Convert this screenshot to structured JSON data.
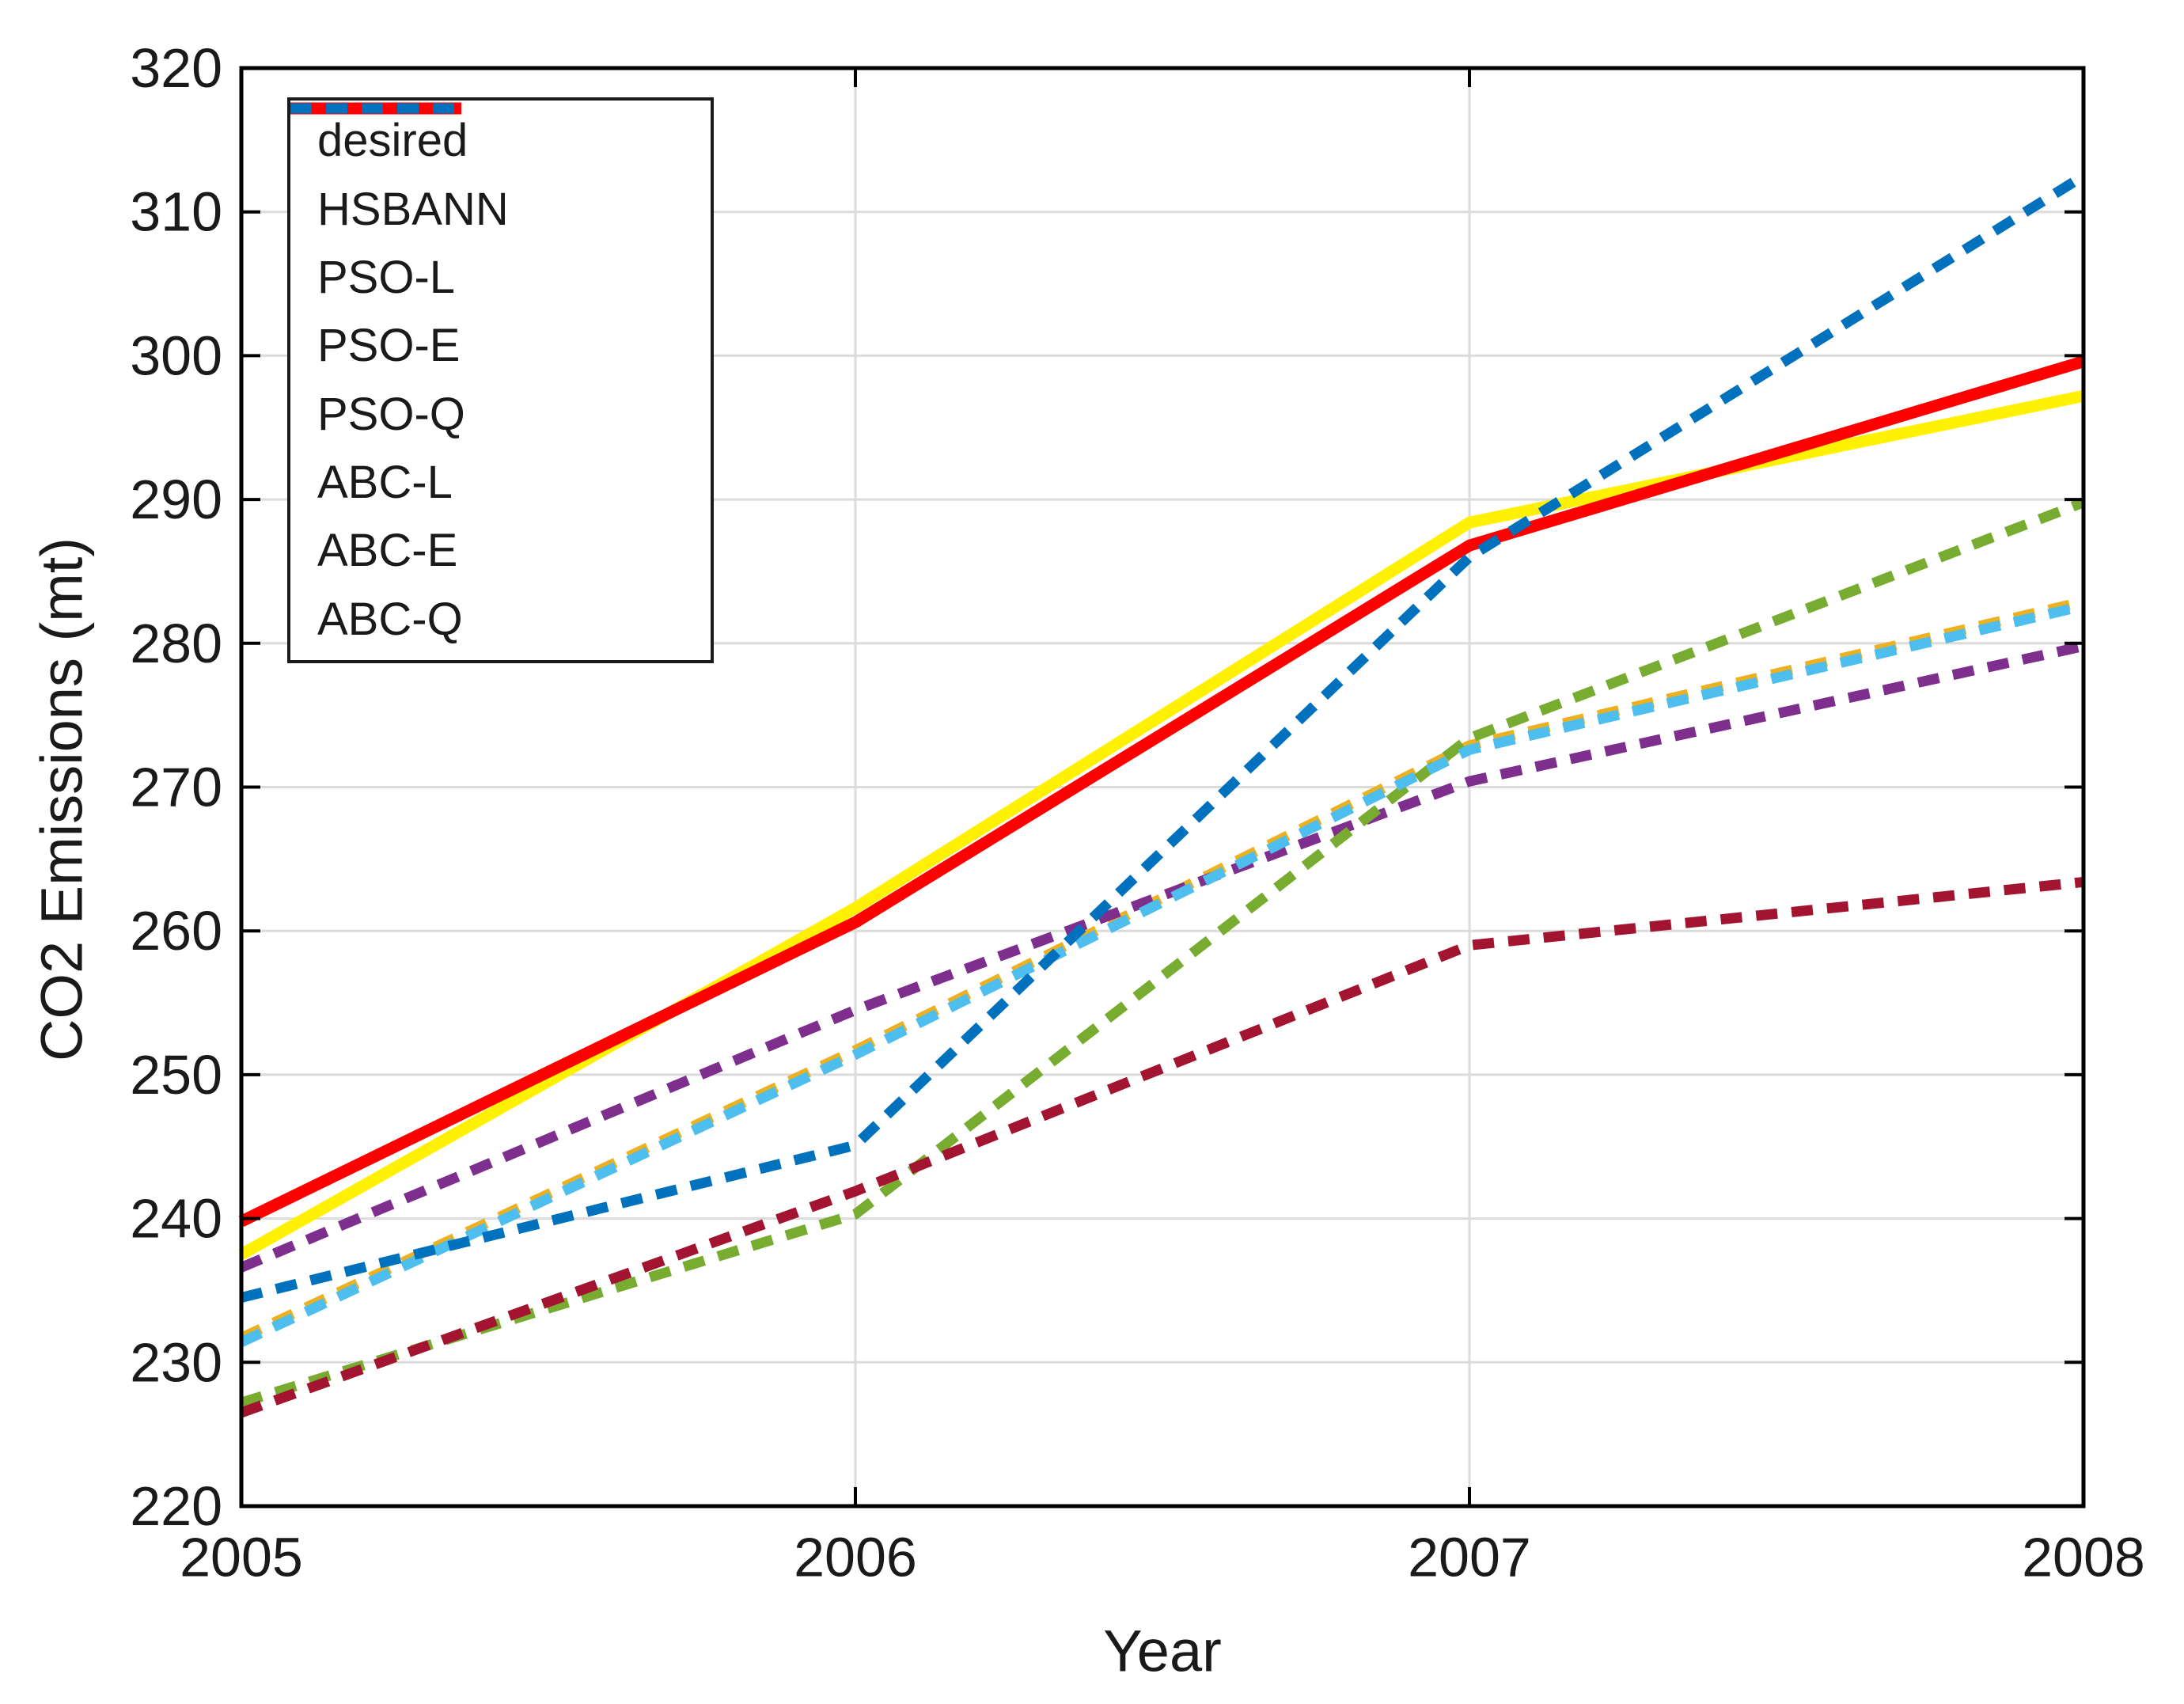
{
  "chart_data": {
    "type": "line",
    "title": "",
    "xlabel": "Year",
    "ylabel": "CO2 Emissions (mt)",
    "x": [
      2005,
      2006,
      2007,
      2008
    ],
    "xlim": [
      2005,
      2008
    ],
    "ylim": [
      220,
      320
    ],
    "xticks": [
      2005,
      2006,
      2007,
      2008
    ],
    "yticks": [
      220,
      230,
      240,
      250,
      260,
      270,
      280,
      290,
      300,
      310,
      320
    ],
    "grid": true,
    "grid_color": "#dbdbdb",
    "axis_color": "#000000",
    "text_color": "#1a1a1a",
    "legend_position": "upper-left",
    "series": [
      {
        "name": "desired",
        "color": "#FFF100",
        "style": "solid",
        "width": 15,
        "values": [
          237.5,
          261.6,
          288.4,
          297.2
        ]
      },
      {
        "name": "HSBANN",
        "color": "#FF0000",
        "style": "solid",
        "width": 15,
        "values": [
          239.8,
          260.6,
          286.8,
          299.6
        ]
      },
      {
        "name": "PSO-L",
        "color": "#EDB120",
        "style": "dashed",
        "width": 13,
        "values": [
          231.7,
          251.7,
          272.9,
          282.9
        ]
      },
      {
        "name": "PSO-E",
        "color": "#7E2F8E",
        "style": "dashed",
        "width": 13,
        "values": [
          236.6,
          254.5,
          270.4,
          279.8
        ]
      },
      {
        "name": "PSO-Q",
        "color": "#77AC30",
        "style": "dashed",
        "width": 13,
        "values": [
          227.2,
          240.3,
          273.4,
          289.8
        ]
      },
      {
        "name": "ABC-L",
        "color": "#4DBEEE",
        "style": "dashed",
        "width": 13,
        "values": [
          231.4,
          251.4,
          272.6,
          282.6
        ]
      },
      {
        "name": "ABC-E",
        "color": "#A2142F",
        "style": "dashed",
        "width": 13,
        "values": [
          226.5,
          241.9,
          259.0,
          263.4
        ]
      },
      {
        "name": "ABC-Q",
        "color": "#0072BD",
        "style": "dashed",
        "width": 13,
        "values": [
          234.5,
          245.1,
          286.0,
          312.5
        ]
      }
    ]
  }
}
